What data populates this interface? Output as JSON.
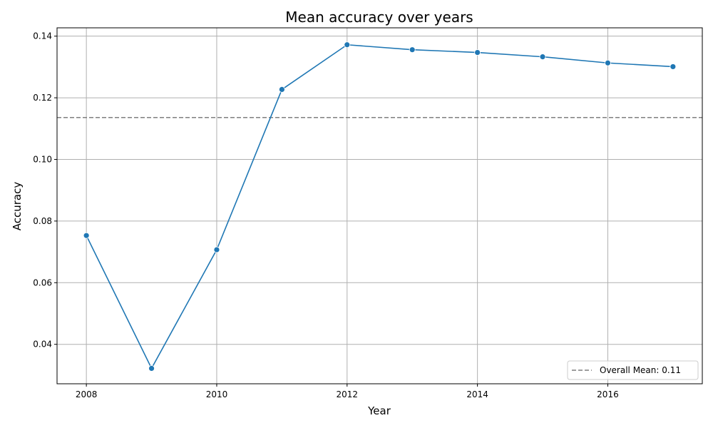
{
  "chart_data": {
    "type": "line",
    "title": "Mean accuracy over years",
    "xlabel": "Year",
    "ylabel": "Accuracy",
    "xlim": [
      2007.55,
      2017.45
    ],
    "ylim": [
      0.0272,
      0.1427
    ],
    "x_ticks": [
      2008,
      2010,
      2012,
      2014,
      2016
    ],
    "y_ticks": [
      0.04,
      0.06,
      0.08,
      0.1,
      0.12,
      0.14
    ],
    "grid": true,
    "series": [
      {
        "color": "#1f77b4",
        "marker": "circle",
        "x": [
          2008,
          2009,
          2010,
          2011,
          2012,
          2013,
          2014,
          2015,
          2016,
          2017
        ],
        "y": [
          0.0753,
          0.0322,
          0.0707,
          0.1227,
          0.1372,
          0.1356,
          0.1347,
          0.1333,
          0.1313,
          0.1301
        ]
      }
    ],
    "reference_line": {
      "orientation": "horizontal",
      "y": 0.1136,
      "label": "Overall Mean: 0.11",
      "color": "#7f7f7f",
      "style": "dashed"
    },
    "legend": {
      "position": "lower-right",
      "entries": [
        "Overall Mean: 0.11"
      ]
    }
  }
}
